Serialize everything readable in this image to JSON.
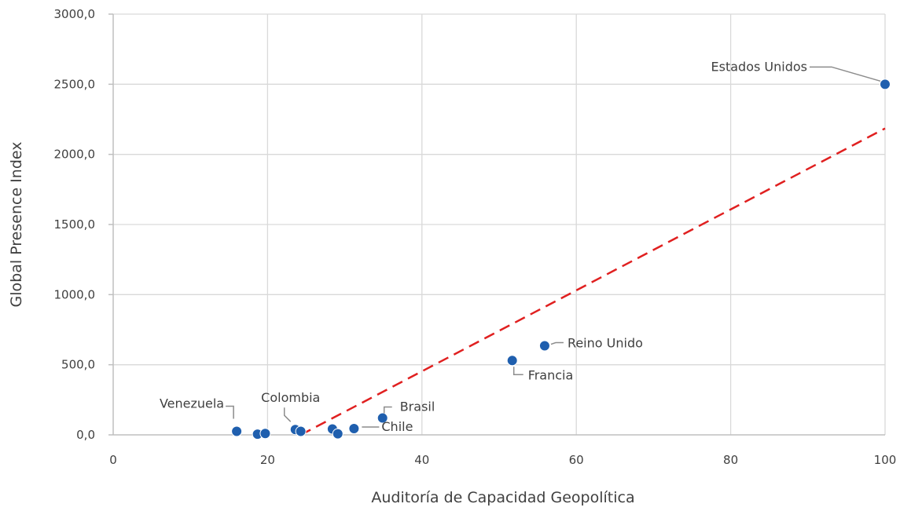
{
  "chart_data": {
    "type": "scatter",
    "xlabel": "Auditoría de Capacidad Geopolítica",
    "ylabel": "Global Presence Index",
    "xlim": [
      0,
      100
    ],
    "ylim": [
      0,
      3000
    ],
    "x_ticks": [
      "0",
      "20",
      "40",
      "60",
      "80",
      "100"
    ],
    "y_ticks": [
      "0,0",
      "500,0",
      "1000,0",
      "1500,0",
      "2000,0",
      "2500,0",
      "3000,0"
    ],
    "grid": true,
    "points": [
      {
        "x": 16.0,
        "y": 25,
        "label": "Venezuela"
      },
      {
        "x": 18.7,
        "y": 5,
        "label": ""
      },
      {
        "x": 19.7,
        "y": 10,
        "label": ""
      },
      {
        "x": 23.6,
        "y": 38,
        "label": "Colombia"
      },
      {
        "x": 24.3,
        "y": 25,
        "label": ""
      },
      {
        "x": 28.4,
        "y": 42,
        "label": ""
      },
      {
        "x": 29.1,
        "y": 8,
        "label": ""
      },
      {
        "x": 31.2,
        "y": 45,
        "label": "Chile"
      },
      {
        "x": 34.9,
        "y": 120,
        "label": "Brasil"
      },
      {
        "x": 51.7,
        "y": 530,
        "label": "Francia"
      },
      {
        "x": 55.9,
        "y": 635,
        "label": "Reino Unido"
      },
      {
        "x": 100.0,
        "y": 2500,
        "label": "Estados Unidos"
      }
    ],
    "trendline": {
      "x": [
        24.3,
        100
      ],
      "y": [
        0,
        2185
      ],
      "style": "dashed",
      "color": "#e02020"
    },
    "point_color": "#1f5fae",
    "grid_color": "#d9d9d9"
  }
}
